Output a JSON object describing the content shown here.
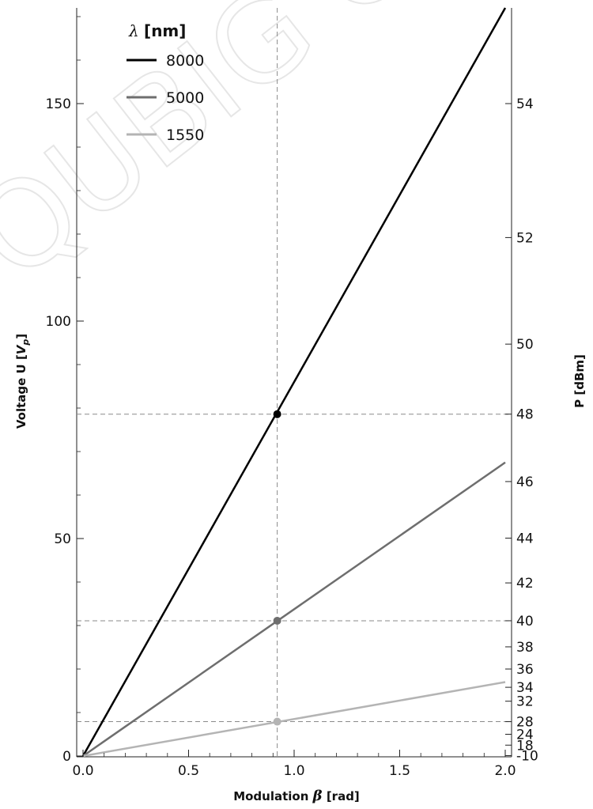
{
  "watermark_text": "QUBIG GmbH",
  "chart_data": {
    "type": "line",
    "xlabel_prefix": "Modulation ",
    "xlabel_symbol": "β",
    "xlabel_suffix": " [rad]",
    "ylabel_prefix": "Voltage U [",
    "ylabel_symbol": "V",
    "ylabel_sub": "p",
    "ylabel_suffix": "]",
    "y2label": "P [dBm]",
    "xlim": [
      0,
      2.0
    ],
    "ylim": [
      0,
      172
    ],
    "x_ticks": [
      0.0,
      0.5,
      1.0,
      1.5,
      2.0
    ],
    "x_tick_labels": [
      "0.0",
      "0.5",
      "1.0",
      "1.5",
      "2.0"
    ],
    "y_ticks": [
      0,
      50,
      100,
      150
    ],
    "y_tick_labels": [
      "0",
      "50",
      "100",
      "150"
    ],
    "y2_ticks": [
      {
        "label": "54",
        "voltage": 150.0
      },
      {
        "label": "52",
        "voltage": 119.2
      },
      {
        "label": "50",
        "voltage": 94.7
      },
      {
        "label": "48",
        "voltage": 78.6
      },
      {
        "label": "46",
        "voltage": 63.1
      },
      {
        "label": "44",
        "voltage": 50.1
      },
      {
        "label": "42",
        "voltage": 39.8
      },
      {
        "label": "40",
        "voltage": 31.1
      },
      {
        "label": "38",
        "voltage": 25.1
      },
      {
        "label": "36",
        "voltage": 20.0
      },
      {
        "label": "34",
        "voltage": 15.8
      },
      {
        "label": "32",
        "voltage": 12.6
      },
      {
        "label": "28",
        "voltage": 7.9
      },
      {
        "label": "24",
        "voltage": 5.0
      },
      {
        "label": "18",
        "voltage": 2.5
      },
      {
        "label": "-10",
        "voltage": 0.1
      }
    ],
    "legend_title_symbol": "λ",
    "legend_title_unit": "[nm]",
    "legend_position": "top-left",
    "series": [
      {
        "name": "8000",
        "color": "#000000",
        "x": [
          0,
          2.0
        ],
        "y": [
          0,
          172
        ]
      },
      {
        "name": "5000",
        "color": "#6e6e6e",
        "x": [
          0,
          2.0
        ],
        "y": [
          0,
          67.5
        ]
      },
      {
        "name": "1550",
        "color": "#b4b4b4",
        "x": [
          0,
          2.0
        ],
        "y": [
          0,
          17.0
        ]
      }
    ],
    "marker_x": 0.92,
    "markers": [
      {
        "series": "8000",
        "y": 78.6
      },
      {
        "series": "5000",
        "y": 31.1
      },
      {
        "series": "1550",
        "y": 7.9
      }
    ],
    "grid": false
  }
}
